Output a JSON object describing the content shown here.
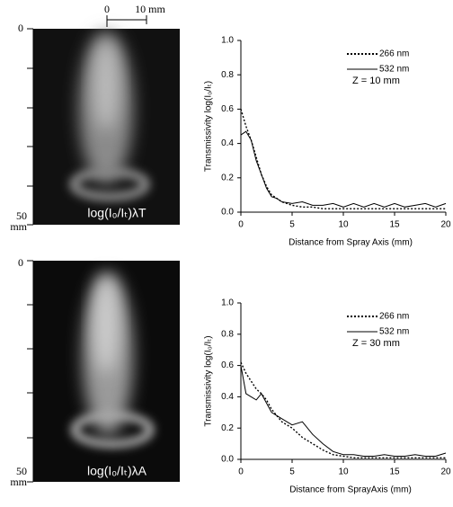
{
  "images": [
    {
      "scale_zero": "0",
      "scale_length": "10 mm",
      "axis_top": "0",
      "axis_bottom": "50",
      "axis_unit": "mm",
      "label": "log(I₀/Iₜ)λT"
    },
    {
      "axis_top": "0",
      "axis_bottom": "50",
      "axis_unit": "mm",
      "label": "log(I₀/Iₜ)λA"
    }
  ],
  "chart_data": [
    {
      "type": "line",
      "annotation": "Z = 10 mm",
      "x_label": "Distance from Spray Axis   (mm)",
      "y_label": "Transmissivity  log(I₀/Iₜ)",
      "x": [
        0,
        0.5,
        1,
        1.5,
        2,
        2.5,
        3,
        3.5,
        4,
        5,
        6,
        7,
        8,
        9,
        10,
        11,
        12,
        13,
        14,
        15,
        16,
        17,
        18,
        19,
        20
      ],
      "series": [
        {
          "name": "266 nm",
          "color": "#000000",
          "dash": true,
          "values": [
            0.6,
            0.5,
            0.42,
            0.32,
            0.22,
            0.15,
            0.1,
            0.08,
            0.06,
            0.04,
            0.03,
            0.03,
            0.02,
            0.02,
            0.02,
            0.02,
            0.02,
            0.02,
            0.02,
            0.02,
            0.02,
            0.02,
            0.02,
            0.02,
            0.02
          ]
        },
        {
          "name": "532 nm",
          "color": "#000000",
          "dash": false,
          "values": [
            0.45,
            0.47,
            0.42,
            0.3,
            0.22,
            0.14,
            0.09,
            0.08,
            0.06,
            0.05,
            0.06,
            0.04,
            0.04,
            0.05,
            0.03,
            0.05,
            0.03,
            0.05,
            0.03,
            0.05,
            0.03,
            0.04,
            0.05,
            0.03,
            0.05
          ]
        }
      ],
      "xlim": [
        0,
        20
      ],
      "xticks": [
        0,
        5,
        10,
        15,
        20
      ],
      "ylim": [
        0,
        1
      ],
      "yticks": [
        {
          "value": 0,
          "label": "0.0"
        },
        {
          "value": 0.2,
          "label": "0.2"
        },
        {
          "value": 0.4,
          "label": "0.4"
        },
        {
          "value": 0.6,
          "label": "0.6"
        },
        {
          "value": 0.8,
          "label": "0.8"
        },
        {
          "value": 1,
          "label": "1.0"
        }
      ]
    },
    {
      "type": "line",
      "annotation": "Z = 30 mm",
      "x_label": "Distance from SprayAxis   (mm)",
      "y_label": "Transmissivity  log(I₀/Iₜ)",
      "x": [
        0,
        0.5,
        1,
        1.5,
        2,
        2.5,
        3,
        3.5,
        4,
        5,
        6,
        7,
        8,
        9,
        10,
        11,
        12,
        13,
        14,
        15,
        16,
        17,
        18,
        19,
        20
      ],
      "series": [
        {
          "name": "266 nm",
          "color": "#000000",
          "dash": true,
          "values": [
            0.62,
            0.55,
            0.5,
            0.45,
            0.42,
            0.38,
            0.32,
            0.28,
            0.24,
            0.2,
            0.14,
            0.1,
            0.06,
            0.03,
            0.02,
            0.01,
            0.01,
            0.01,
            0.01,
            0.01,
            0.01,
            0.01,
            0.01,
            0.01,
            0.01
          ]
        },
        {
          "name": "532 nm",
          "color": "#000000",
          "dash": false,
          "values": [
            0.6,
            0.42,
            0.4,
            0.38,
            0.42,
            0.36,
            0.3,
            0.28,
            0.26,
            0.22,
            0.24,
            0.16,
            0.1,
            0.05,
            0.03,
            0.03,
            0.02,
            0.02,
            0.03,
            0.02,
            0.02,
            0.03,
            0.02,
            0.02,
            0.04
          ]
        }
      ],
      "xlim": [
        0,
        20
      ],
      "xticks": [
        0,
        5,
        10,
        15,
        20
      ],
      "ylim": [
        0,
        1
      ],
      "yticks": [
        {
          "value": 0,
          "label": "0.0"
        },
        {
          "value": 0.2,
          "label": "0.2"
        },
        {
          "value": 0.4,
          "label": "0.4"
        },
        {
          "value": 0.6,
          "label": "0.6"
        },
        {
          "value": 0.8,
          "label": "0.8"
        },
        {
          "value": 1,
          "label": "1.0"
        }
      ]
    }
  ]
}
